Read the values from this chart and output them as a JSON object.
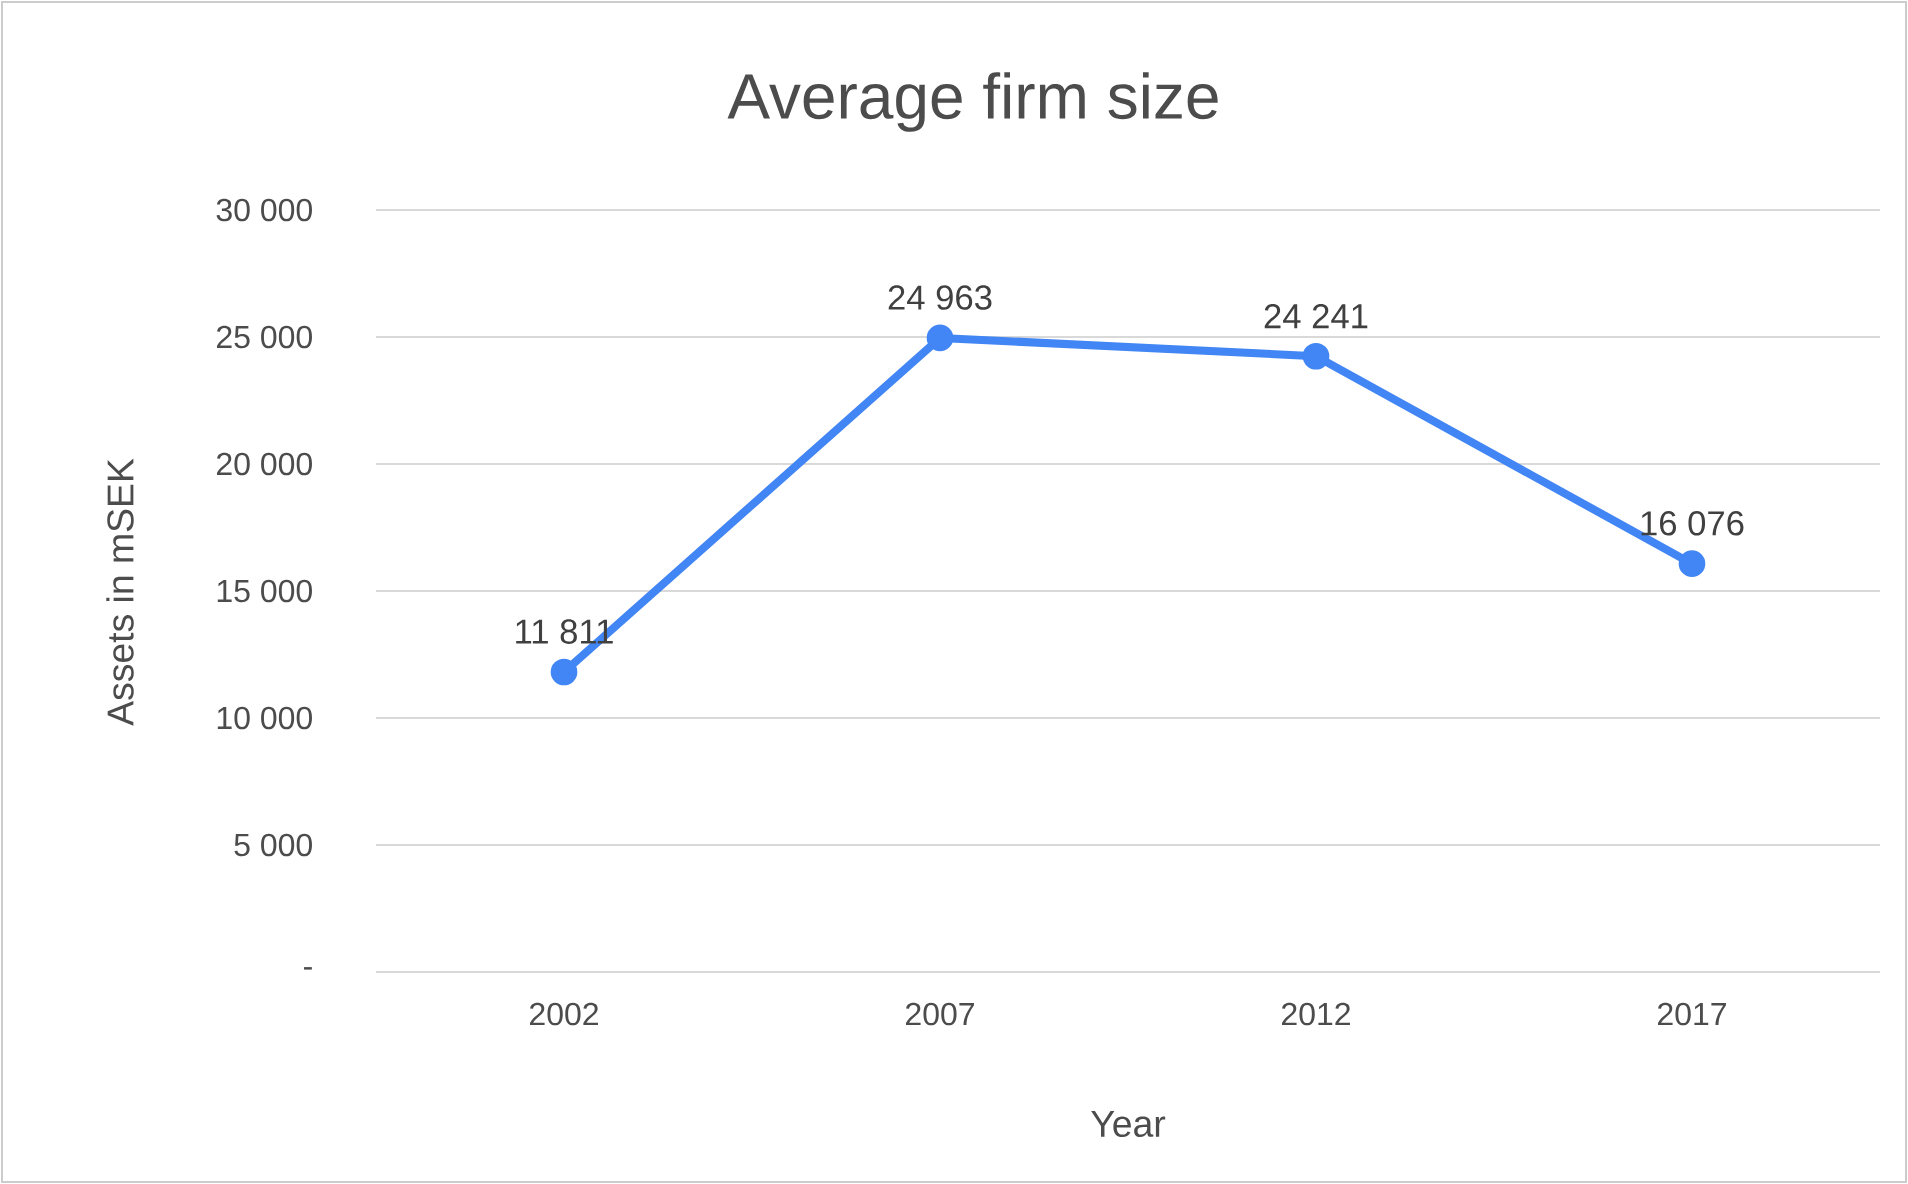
{
  "chart_data": {
    "type": "line",
    "title": "Average firm size",
    "xlabel": "Year",
    "ylabel": "Assets in mSEK",
    "categories": [
      "2002",
      "2007",
      "2012",
      "2017"
    ],
    "values": [
      11811,
      24963,
      24241,
      16076
    ],
    "value_labels": [
      "11 811",
      "24 963",
      "24 241",
      "16 076"
    ],
    "color": "#4285f4",
    "marker": "circle",
    "grid": "y",
    "legend": false,
    "ylim": [
      0,
      30000
    ],
    "yticks": [
      {
        "value": 0,
        "label": "-"
      },
      {
        "value": 5000,
        "label": "5 000"
      },
      {
        "value": 10000,
        "label": "10 000"
      },
      {
        "value": 15000,
        "label": "15 000"
      },
      {
        "value": 20000,
        "label": "20 000"
      },
      {
        "value": 25000,
        "label": "25 000"
      },
      {
        "value": 30000,
        "label": "30 000"
      }
    ]
  }
}
